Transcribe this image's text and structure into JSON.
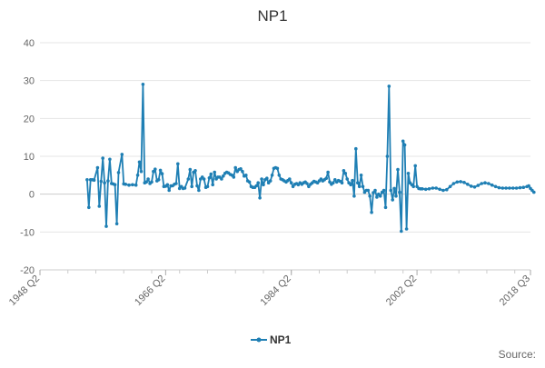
{
  "chart_data": {
    "type": "line",
    "title": "NP1",
    "xlabel": "",
    "ylabel": "",
    "legend_position": "bottom",
    "grid": true,
    "source_label": "Source:",
    "x_ticks": [
      "1948 Q2",
      "1966 Q2",
      "1984 Q2",
      "2002 Q2",
      "2018 Q3"
    ],
    "xlim": [
      1948.25,
      2018.5
    ],
    "y_ticks": [
      40,
      30,
      20,
      10,
      0,
      -10,
      -20
    ],
    "ylim": [
      -20,
      40
    ],
    "colors": {
      "series": "#1f7fb4",
      "grid": "#e4e4e4",
      "axis": "#cccccc",
      "text": "#666666",
      "title": "#333333"
    },
    "series": [
      {
        "name": "NP1",
        "points": [
          [
            1955.0,
            3.8
          ],
          [
            1955.25,
            -3.5
          ],
          [
            1955.5,
            3.8
          ],
          [
            1955.75,
            3.8
          ],
          [
            1956.0,
            3.7
          ],
          [
            1956.5,
            7.0
          ],
          [
            1956.75,
            -3.2
          ],
          [
            1957.0,
            3.4
          ],
          [
            1957.25,
            9.5
          ],
          [
            1957.5,
            3.0
          ],
          [
            1957.75,
            -8.5
          ],
          [
            1958.0,
            3.5
          ],
          [
            1958.25,
            9.2
          ],
          [
            1958.5,
            2.8
          ],
          [
            1958.75,
            2.7
          ],
          [
            1959.0,
            2.5
          ],
          [
            1959.25,
            -7.8
          ],
          [
            1959.5,
            5.7
          ],
          [
            1960.0,
            10.5
          ],
          [
            1960.25,
            2.7
          ],
          [
            1960.5,
            2.6
          ],
          [
            1961.0,
            2.4
          ],
          [
            1961.5,
            2.5
          ],
          [
            1962.0,
            2.4
          ],
          [
            1962.25,
            5.0
          ],
          [
            1962.5,
            8.5
          ],
          [
            1962.75,
            6.0
          ],
          [
            1963.0,
            29.0
          ],
          [
            1963.25,
            3.0
          ],
          [
            1963.5,
            3.2
          ],
          [
            1963.75,
            4.0
          ],
          [
            1964.0,
            2.8
          ],
          [
            1964.25,
            3.2
          ],
          [
            1964.5,
            6.0
          ],
          [
            1964.75,
            6.6
          ],
          [
            1965.0,
            3.5
          ],
          [
            1965.25,
            3.8
          ],
          [
            1965.5,
            6.3
          ],
          [
            1965.75,
            5.4
          ],
          [
            1966.0,
            2.0
          ],
          [
            1966.25,
            2.1
          ],
          [
            1966.5,
            2.5
          ],
          [
            1966.75,
            1.0
          ],
          [
            1967.0,
            2.2
          ],
          [
            1967.25,
            2.2
          ],
          [
            1967.5,
            2.6
          ],
          [
            1967.75,
            2.8
          ],
          [
            1968.0,
            8.0
          ],
          [
            1968.25,
            1.5
          ],
          [
            1968.5,
            2.0
          ],
          [
            1968.75,
            1.5
          ],
          [
            1969.0,
            1.6
          ],
          [
            1969.5,
            4.0
          ],
          [
            1969.75,
            6.5
          ],
          [
            1970.0,
            2.0
          ],
          [
            1970.25,
            5.8
          ],
          [
            1970.5,
            6.2
          ],
          [
            1970.75,
            2.2
          ],
          [
            1971.0,
            1.0
          ],
          [
            1971.25,
            4.0
          ],
          [
            1971.5,
            4.5
          ],
          [
            1971.75,
            4.0
          ],
          [
            1972.0,
            1.8
          ],
          [
            1972.25,
            2.0
          ],
          [
            1972.5,
            4.3
          ],
          [
            1972.75,
            5.3
          ],
          [
            1973.0,
            2.5
          ],
          [
            1973.25,
            5.8
          ],
          [
            1973.5,
            4.0
          ],
          [
            1973.75,
            4.5
          ],
          [
            1974.0,
            4.5
          ],
          [
            1974.25,
            4.0
          ],
          [
            1974.5,
            4.8
          ],
          [
            1974.75,
            5.5
          ],
          [
            1975.0,
            5.8
          ],
          [
            1975.25,
            5.6
          ],
          [
            1975.5,
            5.2
          ],
          [
            1975.75,
            5.0
          ],
          [
            1976.0,
            4.5
          ],
          [
            1976.25,
            7.0
          ],
          [
            1976.5,
            6.0
          ],
          [
            1976.75,
            6.5
          ],
          [
            1977.0,
            6.7
          ],
          [
            1977.25,
            6.0
          ],
          [
            1977.5,
            4.8
          ],
          [
            1977.75,
            5.0
          ],
          [
            1978.0,
            3.5
          ],
          [
            1978.25,
            3.2
          ],
          [
            1978.5,
            2.0
          ],
          [
            1978.75,
            1.8
          ],
          [
            1979.0,
            1.8
          ],
          [
            1979.25,
            2.2
          ],
          [
            1979.5,
            3.0
          ],
          [
            1979.75,
            -1.0
          ],
          [
            1980.0,
            4.0
          ],
          [
            1980.25,
            2.5
          ],
          [
            1980.5,
            3.8
          ],
          [
            1980.75,
            4.2
          ],
          [
            1981.0,
            3.0
          ],
          [
            1981.25,
            3.5
          ],
          [
            1981.5,
            5.0
          ],
          [
            1981.75,
            6.8
          ],
          [
            1982.0,
            7.0
          ],
          [
            1982.25,
            6.8
          ],
          [
            1982.5,
            5.0
          ],
          [
            1982.75,
            4.0
          ],
          [
            1983.0,
            3.8
          ],
          [
            1983.25,
            3.5
          ],
          [
            1983.5,
            3.2
          ],
          [
            1983.75,
            3.6
          ],
          [
            1984.0,
            4.0
          ],
          [
            1984.25,
            3.0
          ],
          [
            1984.5,
            2.0
          ],
          [
            1984.75,
            2.6
          ],
          [
            1985.0,
            2.8
          ],
          [
            1985.25,
            2.5
          ],
          [
            1985.5,
            3.0
          ],
          [
            1985.75,
            2.6
          ],
          [
            1986.0,
            3.0
          ],
          [
            1986.25,
            3.2
          ],
          [
            1986.5,
            2.8
          ],
          [
            1986.75,
            2.0
          ],
          [
            1987.0,
            2.6
          ],
          [
            1987.25,
            3.0
          ],
          [
            1987.5,
            3.4
          ],
          [
            1987.75,
            3.2
          ],
          [
            1988.0,
            3.0
          ],
          [
            1988.25,
            3.5
          ],
          [
            1988.5,
            4.0
          ],
          [
            1988.75,
            3.5
          ],
          [
            1989.0,
            3.8
          ],
          [
            1989.25,
            4.2
          ],
          [
            1989.5,
            5.8
          ],
          [
            1989.75,
            3.2
          ],
          [
            1990.0,
            2.6
          ],
          [
            1990.25,
            3.0
          ],
          [
            1990.5,
            3.8
          ],
          [
            1990.75,
            3.2
          ],
          [
            1991.0,
            3.6
          ],
          [
            1991.25,
            3.4
          ],
          [
            1991.5,
            3.0
          ],
          [
            1991.75,
            6.2
          ],
          [
            1992.0,
            5.5
          ],
          [
            1992.25,
            4.0
          ],
          [
            1992.5,
            3.0
          ],
          [
            1992.75,
            2.5
          ],
          [
            1993.0,
            3.6
          ],
          [
            1993.25,
            -0.5
          ],
          [
            1993.5,
            12.0
          ],
          [
            1993.75,
            3.0
          ],
          [
            1994.0,
            2.0
          ],
          [
            1994.25,
            5.0
          ],
          [
            1994.5,
            2.0
          ],
          [
            1994.75,
            0.5
          ],
          [
            1995.0,
            1.0
          ],
          [
            1995.25,
            1.0
          ],
          [
            1995.5,
            -0.5
          ],
          [
            1995.75,
            -4.8
          ],
          [
            1996.0,
            0.4
          ],
          [
            1996.25,
            1.0
          ],
          [
            1996.5,
            -0.8
          ],
          [
            1996.75,
            0.0
          ],
          [
            1997.0,
            -0.5
          ],
          [
            1997.25,
            0.5
          ],
          [
            1997.5,
            1.0
          ],
          [
            1997.75,
            -3.5
          ],
          [
            1998.0,
            10.0
          ],
          [
            1998.25,
            28.5
          ],
          [
            1998.5,
            1.0
          ],
          [
            1998.75,
            -1.5
          ],
          [
            1999.0,
            1.5
          ],
          [
            1999.25,
            -0.5
          ],
          [
            1999.5,
            6.5
          ],
          [
            1999.75,
            0.5
          ],
          [
            2000.0,
            -9.8
          ],
          [
            2000.25,
            14.0
          ],
          [
            2000.5,
            13.0
          ],
          [
            2000.75,
            -9.2
          ],
          [
            2001.0,
            5.5
          ],
          [
            2001.25,
            3.0
          ],
          [
            2001.5,
            2.5
          ],
          [
            2001.75,
            2.0
          ],
          [
            2002.0,
            7.5
          ],
          [
            2002.25,
            2.0
          ],
          [
            2002.5,
            1.5
          ],
          [
            2002.75,
            1.4
          ],
          [
            2003.0,
            1.4
          ],
          [
            2003.5,
            1.3
          ],
          [
            2004.0,
            1.4
          ],
          [
            2004.5,
            1.6
          ],
          [
            2005.0,
            1.6
          ],
          [
            2005.5,
            1.3
          ],
          [
            2006.0,
            1.0
          ],
          [
            2006.5,
            1.2
          ],
          [
            2007.0,
            2.0
          ],
          [
            2007.5,
            2.8
          ],
          [
            2008.0,
            3.2
          ],
          [
            2008.5,
            3.3
          ],
          [
            2009.0,
            3.1
          ],
          [
            2009.5,
            2.6
          ],
          [
            2010.0,
            2.1
          ],
          [
            2010.5,
            1.9
          ],
          [
            2011.0,
            2.3
          ],
          [
            2011.5,
            2.8
          ],
          [
            2012.0,
            3.0
          ],
          [
            2012.5,
            2.8
          ],
          [
            2013.0,
            2.4
          ],
          [
            2013.5,
            2.0
          ],
          [
            2014.0,
            1.7
          ],
          [
            2014.5,
            1.6
          ],
          [
            2015.0,
            1.6
          ],
          [
            2015.5,
            1.6
          ],
          [
            2016.0,
            1.6
          ],
          [
            2016.5,
            1.6
          ],
          [
            2017.0,
            1.7
          ],
          [
            2017.5,
            1.8
          ],
          [
            2018.0,
            2.0
          ],
          [
            2018.25,
            2.2
          ],
          [
            2018.5,
            1.5
          ],
          [
            2018.75,
            1.0
          ],
          [
            2019.0,
            0.5
          ]
        ]
      }
    ]
  }
}
